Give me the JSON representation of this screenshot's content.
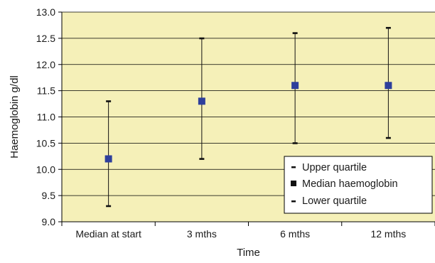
{
  "chart_data": {
    "type": "scatter",
    "title": "",
    "xlabel": "Time",
    "ylabel": "Haemoglobin g/dl",
    "categories": [
      "Median at start",
      "3 mths",
      "6 mths",
      "12 mths"
    ],
    "ylim": [
      9.0,
      13.0
    ],
    "yticks": [
      "9.0",
      "9.5",
      "10.0",
      "10.5",
      "11.0",
      "11.5",
      "12.0",
      "12.5",
      "13.0"
    ],
    "grid": true,
    "legend_position": "bottom-right",
    "series": [
      {
        "name": "Upper quartile",
        "values": [
          11.3,
          12.5,
          12.6,
          12.7
        ]
      },
      {
        "name": "Median haemoglobin",
        "values": [
          10.2,
          11.3,
          11.6,
          11.6
        ]
      },
      {
        "name": "Lower quartile",
        "values": [
          9.3,
          10.2,
          10.5,
          10.6
        ]
      }
    ],
    "colors": {
      "plot_background": "#f5f0b8",
      "median_marker": "#2e3f9c",
      "quartile_marker": "#111111",
      "gridline": "#000000"
    }
  }
}
